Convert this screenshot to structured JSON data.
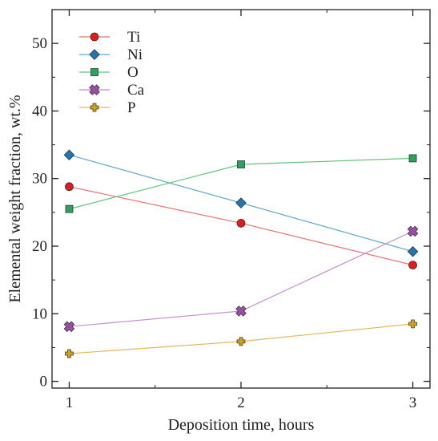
{
  "chart_data": {
    "type": "line",
    "x": [
      1,
      2,
      3
    ],
    "xlabel": "Deposition time, hours",
    "ylabel": "Elemental weight fraction, wt.%",
    "xlim": [
      0.9,
      3.1
    ],
    "ylim": [
      -1,
      55
    ],
    "xticks": [
      1,
      2,
      3
    ],
    "yticks": [
      0,
      10,
      20,
      30,
      40,
      50
    ],
    "grid": false,
    "legend_position": "top-left",
    "series": [
      {
        "name": "Ti",
        "values": [
          28.8,
          23.4,
          17.2
        ],
        "color": "#e8736f",
        "marker_color": "#e41a1c",
        "marker": "circle"
      },
      {
        "name": "Ni",
        "values": [
          33.5,
          26.4,
          19.2
        ],
        "color": "#5fa8c8",
        "marker_color": "#1f78b4",
        "marker": "diamond"
      },
      {
        "name": "O",
        "values": [
          25.5,
          32.1,
          33.0
        ],
        "color": "#5fc47a",
        "marker_color": "#2ca25f",
        "marker": "square"
      },
      {
        "name": "Ca",
        "values": [
          8.1,
          10.4,
          22.2
        ],
        "color": "#c48fcf",
        "marker_color": "#984ea3",
        "marker": "x"
      },
      {
        "name": "P",
        "values": [
          4.1,
          5.9,
          8.5
        ],
        "color": "#e3b95a",
        "marker_color": "#d4a017",
        "marker": "plus"
      }
    ]
  }
}
